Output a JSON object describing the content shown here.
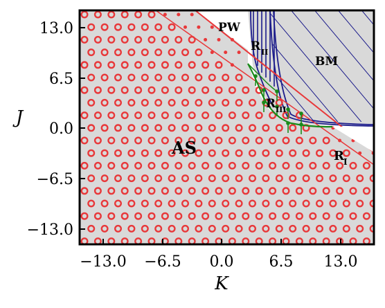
{
  "chart_data": {
    "type": "area",
    "title": "",
    "xlabel": "K",
    "ylabel": "J",
    "xlim": [
      -15.5,
      15.5
    ],
    "ylim": [
      -15.0,
      15.0
    ],
    "xticks": [
      -13.0,
      -6.5,
      0.0,
      6.5,
      13.0
    ],
    "yticks": [
      13.0,
      6.5,
      0.0,
      -6.5,
      -13.0
    ],
    "xtick_labels": [
      "−13.0",
      "−6.5",
      "0.0",
      "6.5",
      "13.0"
    ],
    "ytick_labels": [
      "13.0",
      "6.5",
      "0.0",
      "−6.5",
      "−13.0"
    ],
    "grid": false,
    "regions": [
      {
        "label": "AS",
        "boundary": {
          "x": [
            -15.5,
            -4.5,
            15.5
          ],
          "y": [
            15.0,
            15.0,
            -4.5
          ]
        },
        "fill": "#d9d9d9",
        "marker": "open-circle",
        "marker_color": "#e8383a"
      },
      {
        "label": "R",
        "subscript": "I",
        "boundary": {
          "x": [
            -8.0,
            15.5
          ],
          "y": [
            15.0,
            -8.5
          ]
        },
        "marker": "dot",
        "marker_color": "#e8383a"
      },
      {
        "label": "R",
        "subscript": "III",
        "boundary": {
          "x": [
            2.6,
            3.3,
            4.5,
            6.0,
            8.0,
            10.0
          ],
          "y": [
            8.0,
            4.5,
            1.5,
            0.6,
            0.3,
            0.2
          ]
        },
        "line_color": "#1a8a1a",
        "marker": "arrow-dot",
        "marker_color": "#1a8a1a"
      },
      {
        "label": "R",
        "subscript": "II",
        "boundary": {
          "x": [
            2.6,
            3.0,
            3.3
          ],
          "y": [
            15.0,
            9.5,
            8.0
          ]
        },
        "line_color": "#1a1a8a",
        "fill": "#d9d9d9"
      },
      {
        "label": "BM",
        "boundary": {
          "x": [
            5.0,
            15.5
          ],
          "y": [
            15.0,
            0.2
          ]
        },
        "fill": "#d9d9d9",
        "hatch_color": "#1a1a8a"
      },
      {
        "label": "PW",
        "boundary": {
          "x": [
            2.6,
            5.0
          ],
          "y": [
            15.0,
            15.0
          ]
        },
        "fill": "#ffffff"
      }
    ],
    "colors": {
      "as_fill": "#d9d9d9",
      "red": "#e8383a",
      "green": "#1a8a1a",
      "navy": "#1a1a8a"
    }
  }
}
